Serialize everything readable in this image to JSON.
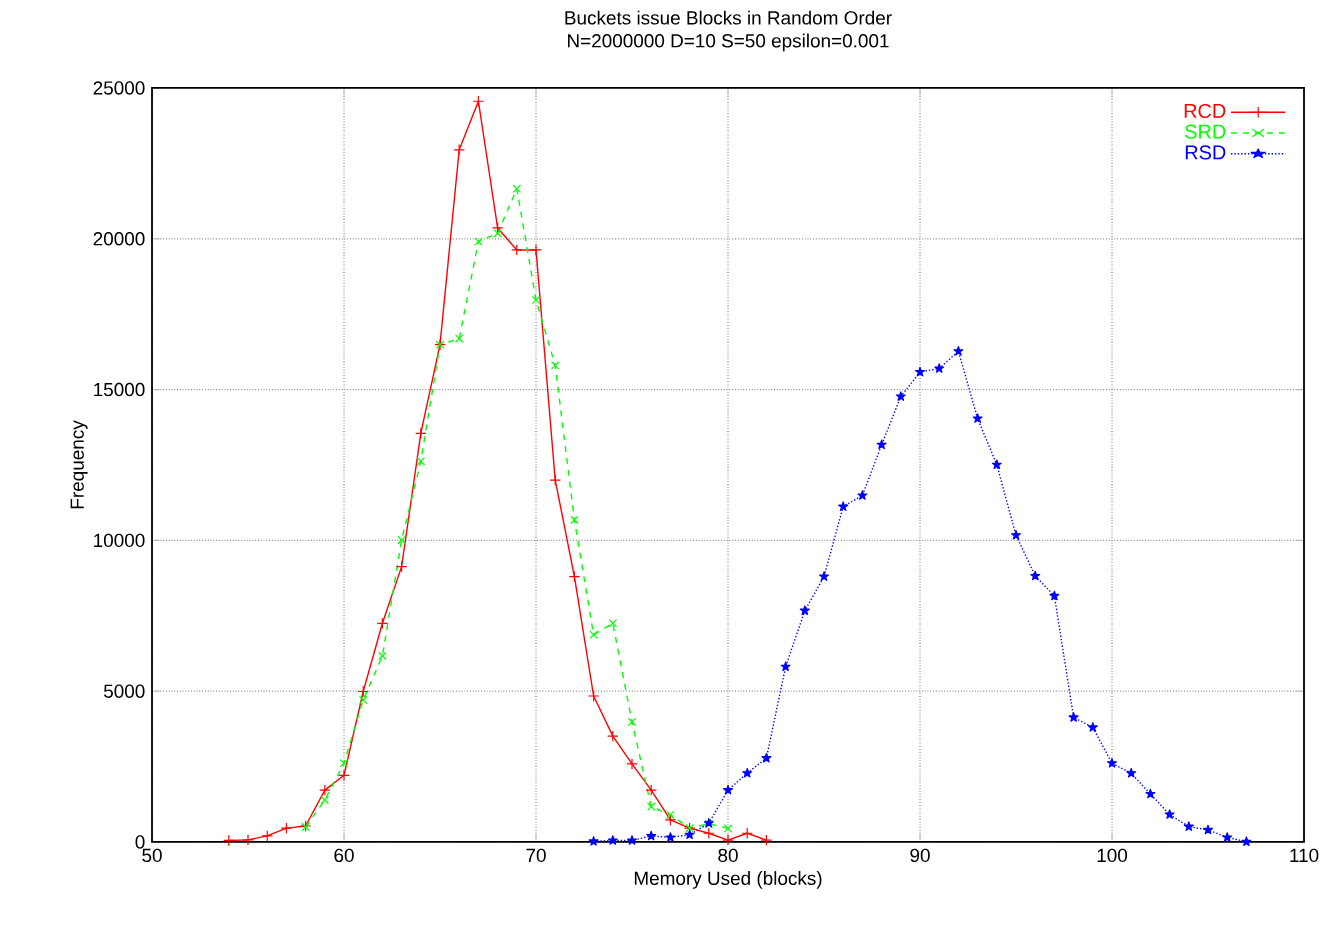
{
  "chart_data": {
    "type": "line",
    "title": "Buckets issue Blocks in Random Order",
    "subtitle": "N=2000000 D=10 S=50 epsilon=0.001",
    "xlabel": "Memory Used (blocks)",
    "ylabel": "Frequency",
    "xlim": [
      50,
      110
    ],
    "ylim": [
      0,
      25000
    ],
    "xticks": [
      50,
      60,
      70,
      80,
      90,
      100,
      110
    ],
    "yticks": [
      0,
      5000,
      10000,
      15000,
      20000,
      25000
    ],
    "grid": true,
    "legend": "top right",
    "series": [
      {
        "name": "RCD",
        "color": "#ff0000",
        "marker": "plus",
        "line_style": "solid",
        "x": [
          54,
          55,
          56,
          57,
          58,
          59,
          60,
          61,
          62,
          63,
          64,
          65,
          66,
          67,
          68,
          69,
          70,
          71,
          72,
          73,
          74,
          75,
          76,
          77,
          78,
          79,
          80,
          81,
          82
        ],
        "values": [
          50,
          70,
          200,
          460,
          530,
          1720,
          2210,
          4990,
          7250,
          9130,
          13550,
          16490,
          22950,
          24560,
          20360,
          19630,
          19630,
          12000,
          8800,
          4840,
          3510,
          2590,
          1720,
          730,
          460,
          290,
          60,
          290,
          60
        ]
      },
      {
        "name": "SRD",
        "color": "#00ff00",
        "marker": "cross",
        "line_style": "dashed",
        "x": [
          58,
          59,
          60,
          61,
          62,
          63,
          64,
          65,
          66,
          67,
          68,
          69,
          70,
          71,
          72,
          73,
          74,
          75,
          76,
          77,
          78,
          79,
          80
        ],
        "values": [
          500,
          1390,
          2610,
          4710,
          6170,
          10010,
          12620,
          16490,
          16690,
          19910,
          20180,
          21660,
          17970,
          15800,
          10680,
          6870,
          7250,
          3980,
          1170,
          900,
          460,
          600,
          450
        ]
      },
      {
        "name": "RSD",
        "color": "#0000ff",
        "marker": "star",
        "line_style": "dotted",
        "x": [
          73,
          74,
          75,
          76,
          77,
          78,
          79,
          80,
          81,
          82,
          83,
          84,
          85,
          86,
          87,
          88,
          89,
          90,
          91,
          92,
          93,
          94,
          95,
          96,
          97,
          98,
          99,
          100,
          101,
          102,
          103,
          104,
          105,
          106,
          107
        ],
        "values": [
          20,
          50,
          50,
          200,
          150,
          240,
          620,
          1720,
          2280,
          2780,
          5810,
          7670,
          8800,
          11120,
          11490,
          13170,
          14770,
          15580,
          15700,
          16270,
          14040,
          12510,
          10170,
          8820,
          8160,
          4130,
          3800,
          2610,
          2280,
          1590,
          910,
          510,
          400,
          150,
          10
        ]
      }
    ]
  }
}
